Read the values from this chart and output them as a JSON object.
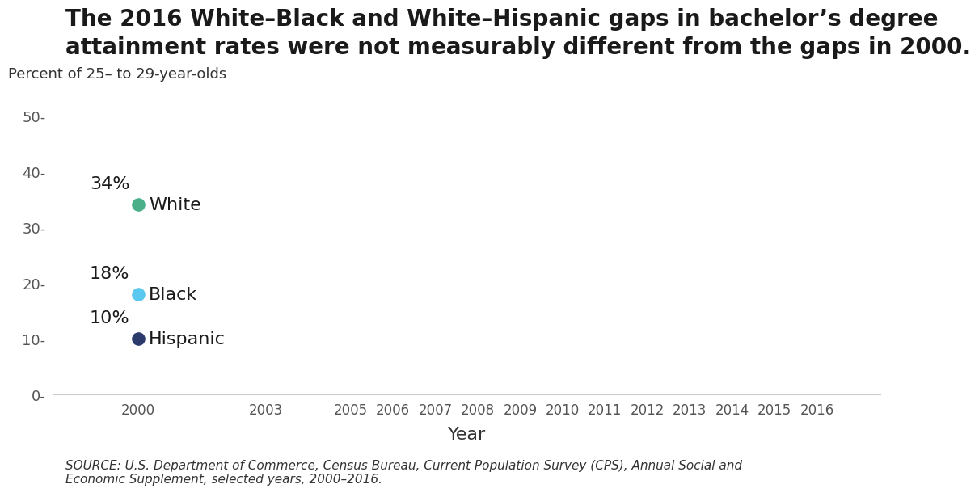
{
  "title_line1": "The 2016 White–Black and White–Hispanic gaps in bachelor’s degree",
  "title_line2": "attainment rates were not measurably different from the gaps in 2000.",
  "ylabel": "Percent of 25– to 29-year-olds",
  "xlabel": "Year",
  "source": "SOURCE: U.S. Department of Commerce, Census Bureau, Current Population Survey (CPS), Annual Social and\nEconomic Supplement, selected years, 2000–2016.",
  "series": [
    {
      "label": "White",
      "value": 34,
      "color": "#4BAF8A",
      "year": 2000
    },
    {
      "label": "Black",
      "value": 18,
      "color": "#5BC8F0",
      "year": 2000
    },
    {
      "label": "Hispanic",
      "value": 10,
      "color": "#2B3A6B",
      "year": 2000
    }
  ],
  "xticks": [
    2000,
    2003,
    2005,
    2006,
    2007,
    2008,
    2009,
    2010,
    2011,
    2012,
    2013,
    2014,
    2015,
    2016
  ],
  "xlim": [
    1998,
    2017.5
  ],
  "ylim": [
    0,
    54
  ],
  "yticks": [
    0,
    10,
    20,
    30,
    40,
    50
  ],
  "ytick_labels": [
    "0-",
    "10-",
    "20-",
    "30-",
    "40-",
    "50-"
  ],
  "background_color": "#FFFFFF",
  "title_fontsize": 20,
  "label_fontsize": 16,
  "tick_fontsize": 13,
  "source_fontsize": 11,
  "dot_size": 120
}
